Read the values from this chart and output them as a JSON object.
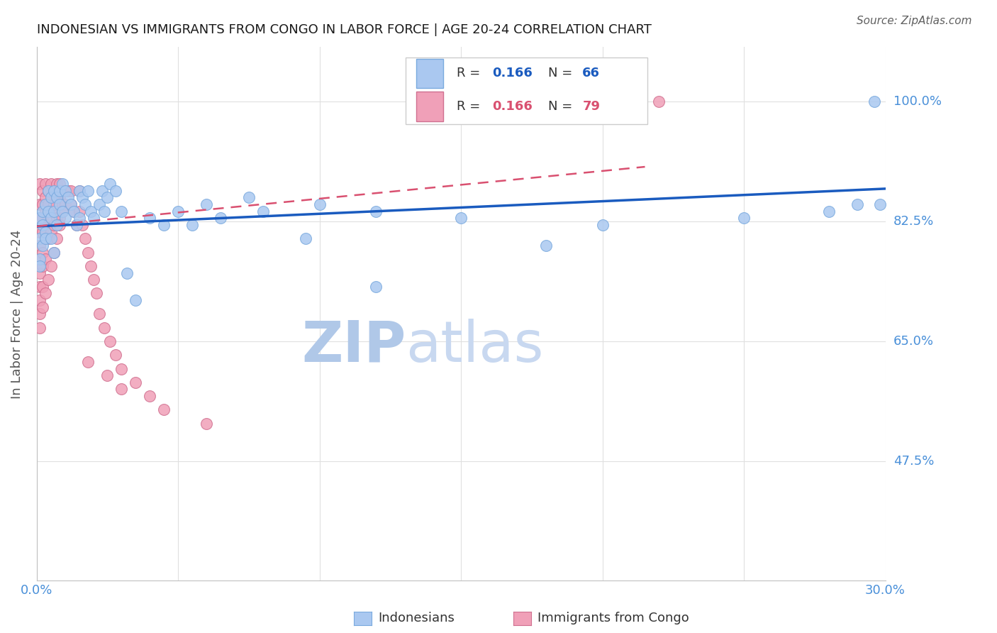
{
  "title": "INDONESIAN VS IMMIGRANTS FROM CONGO IN LABOR FORCE | AGE 20-24 CORRELATION CHART",
  "source": "Source: ZipAtlas.com",
  "ylabel": "In Labor Force | Age 20-24",
  "xlim": [
    0.0,
    0.3
  ],
  "ylim": [
    0.3,
    1.08
  ],
  "xticks": [
    0.0,
    0.05,
    0.1,
    0.15,
    0.2,
    0.25,
    0.3
  ],
  "ytick_values": [
    0.475,
    0.65,
    0.825,
    1.0
  ],
  "ytick_labels": [
    "47.5%",
    "65.0%",
    "82.5%",
    "100.0%"
  ],
  "watermark_zip": "ZIP",
  "watermark_atlas": "atlas",
  "blue_line_x": [
    0.0,
    0.3
  ],
  "blue_line_y": [
    0.818,
    0.873
  ],
  "pink_line_x": [
    0.0,
    0.215
  ],
  "pink_line_y": [
    0.818,
    0.905
  ],
  "indonesian_x": [
    0.001,
    0.001,
    0.001,
    0.001,
    0.002,
    0.002,
    0.002,
    0.003,
    0.003,
    0.003,
    0.004,
    0.004,
    0.005,
    0.005,
    0.005,
    0.006,
    0.006,
    0.006,
    0.007,
    0.007,
    0.008,
    0.008,
    0.009,
    0.009,
    0.01,
    0.01,
    0.011,
    0.012,
    0.013,
    0.014,
    0.015,
    0.015,
    0.016,
    0.017,
    0.018,
    0.019,
    0.02,
    0.022,
    0.023,
    0.024,
    0.025,
    0.026,
    0.028,
    0.03,
    0.032,
    0.035,
    0.04,
    0.045,
    0.05,
    0.055,
    0.06,
    0.065,
    0.08,
    0.1,
    0.12,
    0.15,
    0.18,
    0.2,
    0.25,
    0.28,
    0.29,
    0.296,
    0.298,
    0.12,
    0.095,
    0.075
  ],
  "indonesian_y": [
    0.83,
    0.8,
    0.77,
    0.76,
    0.84,
    0.82,
    0.79,
    0.85,
    0.81,
    0.8,
    0.87,
    0.84,
    0.86,
    0.83,
    0.8,
    0.87,
    0.84,
    0.78,
    0.86,
    0.82,
    0.87,
    0.85,
    0.88,
    0.84,
    0.87,
    0.83,
    0.86,
    0.85,
    0.84,
    0.82,
    0.87,
    0.83,
    0.86,
    0.85,
    0.87,
    0.84,
    0.83,
    0.85,
    0.87,
    0.84,
    0.86,
    0.88,
    0.87,
    0.84,
    0.75,
    0.71,
    0.83,
    0.82,
    0.84,
    0.82,
    0.85,
    0.83,
    0.84,
    0.85,
    0.84,
    0.83,
    0.79,
    0.82,
    0.83,
    0.84,
    0.85,
    1.0,
    0.85,
    0.73,
    0.8,
    0.86
  ],
  "congo_x": [
    0.001,
    0.001,
    0.001,
    0.001,
    0.001,
    0.001,
    0.001,
    0.001,
    0.001,
    0.001,
    0.002,
    0.002,
    0.002,
    0.002,
    0.002,
    0.002,
    0.002,
    0.003,
    0.003,
    0.003,
    0.003,
    0.003,
    0.003,
    0.004,
    0.004,
    0.004,
    0.004,
    0.005,
    0.005,
    0.005,
    0.005,
    0.006,
    0.006,
    0.006,
    0.007,
    0.007,
    0.007,
    0.008,
    0.008,
    0.008,
    0.009,
    0.009,
    0.01,
    0.01,
    0.011,
    0.012,
    0.012,
    0.013,
    0.014,
    0.015,
    0.015,
    0.016,
    0.017,
    0.018,
    0.019,
    0.02,
    0.021,
    0.022,
    0.024,
    0.026,
    0.028,
    0.03,
    0.035,
    0.04,
    0.045,
    0.06,
    0.001,
    0.002,
    0.003,
    0.004,
    0.005,
    0.006,
    0.007,
    0.008,
    0.009,
    0.018,
    0.025,
    0.03,
    0.22
  ],
  "congo_y": [
    0.88,
    0.85,
    0.83,
    0.81,
    0.79,
    0.77,
    0.75,
    0.73,
    0.71,
    0.69,
    0.87,
    0.85,
    0.83,
    0.81,
    0.78,
    0.76,
    0.73,
    0.88,
    0.86,
    0.84,
    0.82,
    0.8,
    0.77,
    0.87,
    0.85,
    0.83,
    0.8,
    0.88,
    0.86,
    0.84,
    0.81,
    0.87,
    0.85,
    0.82,
    0.88,
    0.86,
    0.83,
    0.88,
    0.86,
    0.83,
    0.87,
    0.85,
    0.87,
    0.85,
    0.87,
    0.87,
    0.85,
    0.84,
    0.82,
    0.87,
    0.84,
    0.82,
    0.8,
    0.78,
    0.76,
    0.74,
    0.72,
    0.69,
    0.67,
    0.65,
    0.63,
    0.61,
    0.59,
    0.57,
    0.55,
    0.53,
    0.67,
    0.7,
    0.72,
    0.74,
    0.76,
    0.78,
    0.8,
    0.82,
    0.84,
    0.62,
    0.6,
    0.58,
    1.0
  ],
  "blue_scatter_color": "#aac8f0",
  "blue_scatter_edge": "#7aaade",
  "pink_scatter_color": "#f0a0b8",
  "pink_scatter_edge": "#d07090",
  "blue_line_color": "#1a5bbf",
  "pink_line_color": "#d95070",
  "grid_color": "#e0e0e0",
  "title_color": "#1a1a1a",
  "axis_label_color": "#4a90d9",
  "source_color": "#606060",
  "watermark_color_zip": "#b0c8e8",
  "watermark_color_atlas": "#c8d8f0"
}
